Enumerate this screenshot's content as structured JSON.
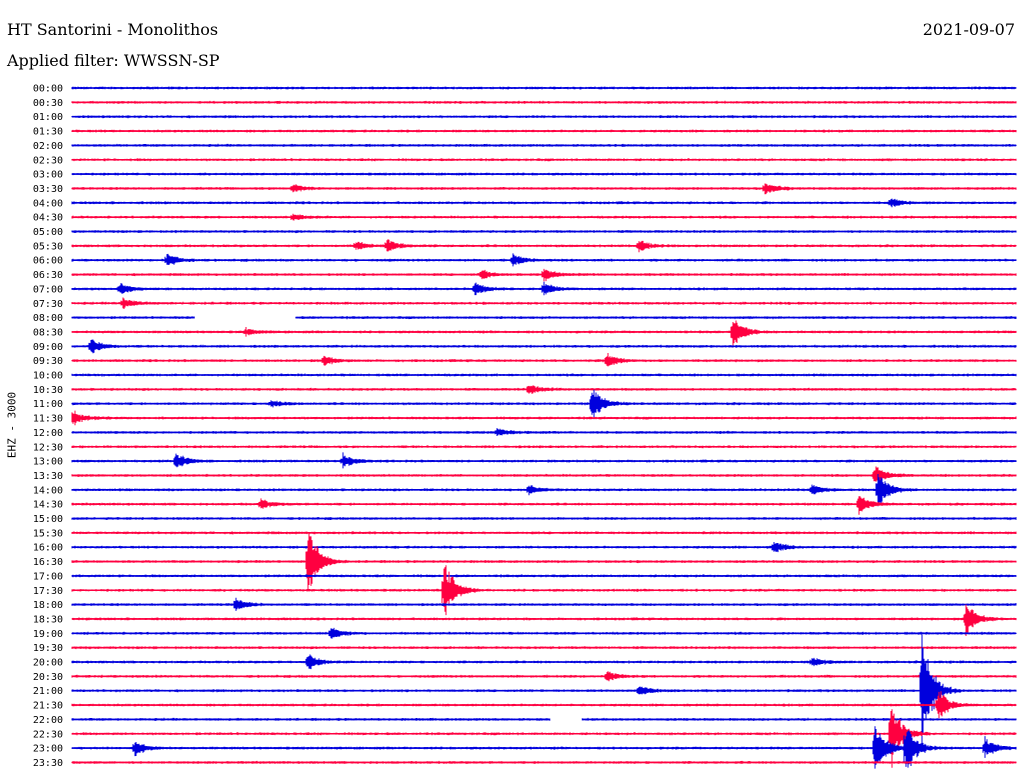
{
  "header": {
    "station": "HT Santorini - Monolithos",
    "date": "2021-09-07",
    "filter": "Applied filter: WWSSN-SP"
  },
  "channel_label": "EHZ - 3000",
  "colors": {
    "even_row": "#0000dd",
    "odd_row": "#ff0040",
    "background": "#ffffff"
  },
  "chart_data": {
    "type": "line",
    "title": "HT Santorini - Monolithos",
    "subtitle": "Applied filter: WWSSN-SP",
    "ylabel": "EHZ - 3000",
    "xlabel": "",
    "row_interval_minutes": 30,
    "rows": [
      {
        "label": "00:00"
      },
      {
        "label": "00:30"
      },
      {
        "label": "01:00"
      },
      {
        "label": "01:30"
      },
      {
        "label": "02:00"
      },
      {
        "label": "02:30"
      },
      {
        "label": "03:00"
      },
      {
        "label": "03:30"
      },
      {
        "label": "04:00"
      },
      {
        "label": "04:30"
      },
      {
        "label": "05:00"
      },
      {
        "label": "05:30"
      },
      {
        "label": "06:00"
      },
      {
        "label": "06:30"
      },
      {
        "label": "07:00"
      },
      {
        "label": "07:30"
      },
      {
        "label": "08:00"
      },
      {
        "label": "08:30"
      },
      {
        "label": "09:00"
      },
      {
        "label": "09:30"
      },
      {
        "label": "10:00"
      },
      {
        "label": "10:30"
      },
      {
        "label": "11:00"
      },
      {
        "label": "11:30"
      },
      {
        "label": "12:00"
      },
      {
        "label": "12:30"
      },
      {
        "label": "13:00"
      },
      {
        "label": "13:30"
      },
      {
        "label": "14:00"
      },
      {
        "label": "14:30"
      },
      {
        "label": "15:00"
      },
      {
        "label": "15:30"
      },
      {
        "label": "16:00"
      },
      {
        "label": "16:30"
      },
      {
        "label": "17:00"
      },
      {
        "label": "17:30"
      },
      {
        "label": "18:00"
      },
      {
        "label": "18:30"
      },
      {
        "label": "19:00"
      },
      {
        "label": "19:30"
      },
      {
        "label": "20:00"
      },
      {
        "label": "20:30"
      },
      {
        "label": "21:00"
      },
      {
        "label": "21:30"
      },
      {
        "label": "22:00"
      },
      {
        "label": "22:30"
      },
      {
        "label": "23:00"
      },
      {
        "label": "23:30"
      }
    ],
    "events": [
      {
        "row": 7,
        "minute": 7,
        "amp": 0.4
      },
      {
        "row": 7,
        "minute": 22,
        "amp": 0.6
      },
      {
        "row": 8,
        "minute": 26,
        "amp": 0.4
      },
      {
        "row": 9,
        "minute": 7,
        "amp": 0.3
      },
      {
        "row": 11,
        "minute": 9,
        "amp": 0.4
      },
      {
        "row": 11,
        "minute": 10,
        "amp": 0.6
      },
      {
        "row": 11,
        "minute": 18,
        "amp": 0.5
      },
      {
        "row": 12,
        "minute": 3,
        "amp": 0.6
      },
      {
        "row": 12,
        "minute": 14,
        "amp": 0.5
      },
      {
        "row": 13,
        "minute": 13,
        "amp": 0.4
      },
      {
        "row": 13,
        "minute": 15,
        "amp": 0.5
      },
      {
        "row": 14,
        "minute": 1.5,
        "amp": 0.5
      },
      {
        "row": 14,
        "minute": 12.8,
        "amp": 0.6
      },
      {
        "row": 14,
        "minute": 15,
        "amp": 0.5
      },
      {
        "row": 15,
        "minute": 1.6,
        "amp": 0.5
      },
      {
        "row": 17,
        "minute": 5.5,
        "amp": 0.3
      },
      {
        "row": 17,
        "minute": 21,
        "amp": 1.4
      },
      {
        "row": 18,
        "minute": 0.6,
        "amp": 0.7
      },
      {
        "row": 19,
        "minute": 8,
        "amp": 0.4
      },
      {
        "row": 19,
        "minute": 17,
        "amp": 0.6
      },
      {
        "row": 21,
        "minute": 14.5,
        "amp": 0.5
      },
      {
        "row": 22,
        "minute": 16.5,
        "amp": 1.5
      },
      {
        "row": 22,
        "minute": 6.3,
        "amp": 0.3
      },
      {
        "row": 23,
        "minute": 0,
        "amp": 0.6
      },
      {
        "row": 24,
        "minute": 13.5,
        "amp": 0.3
      },
      {
        "row": 26,
        "minute": 3.3,
        "amp": 0.7
      },
      {
        "row": 26,
        "minute": 8.6,
        "amp": 0.6
      },
      {
        "row": 27,
        "minute": 25.5,
        "amp": 1.0
      },
      {
        "row": 28,
        "minute": 25.6,
        "amp": 1.6
      },
      {
        "row": 28,
        "minute": 23.5,
        "amp": 0.5
      },
      {
        "row": 28,
        "minute": 14.5,
        "amp": 0.4
      },
      {
        "row": 29,
        "minute": 25,
        "amp": 0.8
      },
      {
        "row": 29,
        "minute": 6,
        "amp": 0.4
      },
      {
        "row": 32,
        "minute": 22.3,
        "amp": 0.5
      },
      {
        "row": 33,
        "minute": 7.5,
        "amp": 2.8
      },
      {
        "row": 35,
        "minute": 11.8,
        "amp": 2.6
      },
      {
        "row": 36,
        "minute": 5.2,
        "amp": 0.6
      },
      {
        "row": 37,
        "minute": 28.4,
        "amp": 1.4
      },
      {
        "row": 38,
        "minute": 8.2,
        "amp": 0.6
      },
      {
        "row": 40,
        "minute": 7.5,
        "amp": 0.7
      },
      {
        "row": 40,
        "minute": 23.5,
        "amp": 0.4
      },
      {
        "row": 41,
        "minute": 17,
        "amp": 0.4
      },
      {
        "row": 42,
        "minute": 18,
        "amp": 0.4
      },
      {
        "row": 42,
        "minute": 27,
        "amp": 5.0
      },
      {
        "row": 43,
        "minute": 27.5,
        "amp": 1.5
      },
      {
        "row": 45,
        "minute": 26,
        "amp": 3.0
      },
      {
        "row": 46,
        "minute": 2,
        "amp": 0.6
      },
      {
        "row": 46,
        "minute": 25.5,
        "amp": 2.5
      },
      {
        "row": 46,
        "minute": 29,
        "amp": 0.9
      },
      {
        "row": 46,
        "minute": 26.5,
        "amp": 2.2
      }
    ],
    "gaps": [
      {
        "row": 16,
        "start_minute": 3.9,
        "end_minute": 7.1
      },
      {
        "row": 44,
        "start_minute": 15.2,
        "end_minute": 16.2
      }
    ]
  }
}
